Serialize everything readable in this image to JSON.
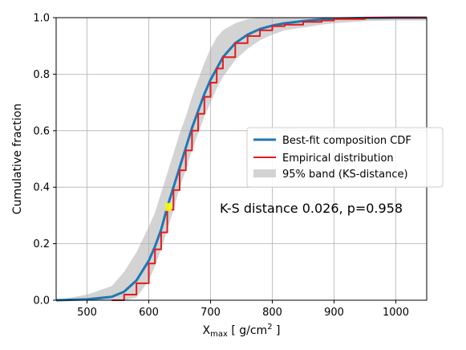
{
  "chart_data": {
    "type": "line",
    "xlabel_main": "X",
    "xlabel_sub": "max",
    "xlabel_unit_open": " [ g/cm",
    "xlabel_unit_sup": "2",
    "xlabel_unit_close": " ]",
    "ylabel": "Cumulative fraction",
    "xlim": [
      450,
      1050
    ],
    "ylim": [
      0.0,
      1.0
    ],
    "xticks": [
      500,
      600,
      700,
      800,
      900,
      1000
    ],
    "yticks": [
      "0.0",
      "0.2",
      "0.4",
      "0.6",
      "0.8",
      "1.0"
    ],
    "grid": true,
    "legend_position": "middle-right",
    "legend": [
      {
        "label": "Best-fit composition CDF",
        "color": "#1f77b4",
        "kind": "line"
      },
      {
        "label": "Empirical distribution",
        "color": "#e41a1c",
        "kind": "line"
      },
      {
        "label": "95% band (KS-distance)",
        "color": "#d3d3d3",
        "kind": "patch"
      }
    ],
    "annotation": "K-S distance 0.026, p=0.958",
    "marker": {
      "x": 632,
      "y": 0.33,
      "color": "#ffff00"
    },
    "series": [
      {
        "name": "Best-fit composition CDF",
        "color": "#1f77b4",
        "x": [
          450,
          500,
          540,
          560,
          580,
          600,
          610,
          620,
          630,
          640,
          650,
          660,
          670,
          680,
          690,
          700,
          710,
          720,
          740,
          760,
          780,
          800,
          820,
          850,
          880,
          900,
          950,
          1000,
          1050
        ],
        "y": [
          0.0,
          0.003,
          0.012,
          0.03,
          0.07,
          0.14,
          0.19,
          0.25,
          0.33,
          0.4,
          0.47,
          0.54,
          0.61,
          0.67,
          0.73,
          0.78,
          0.82,
          0.86,
          0.91,
          0.94,
          0.96,
          0.972,
          0.98,
          0.988,
          0.994,
          0.997,
          0.999,
          1.0,
          1.0
        ]
      },
      {
        "name": "Empirical distribution",
        "color": "#e41a1c",
        "x": [
          540,
          560,
          580,
          600,
          610,
          620,
          630,
          640,
          650,
          660,
          670,
          680,
          690,
          700,
          710,
          720,
          740,
          760,
          780,
          800,
          820,
          850,
          880,
          900,
          950,
          1000,
          1050
        ],
        "y": [
          0.0,
          0.02,
          0.06,
          0.13,
          0.18,
          0.24,
          0.32,
          0.39,
          0.46,
          0.53,
          0.6,
          0.66,
          0.72,
          0.77,
          0.82,
          0.86,
          0.91,
          0.935,
          0.955,
          0.97,
          0.975,
          0.985,
          0.99,
          0.995,
          1.0,
          1.0,
          1.0
        ]
      }
    ],
    "band": {
      "x": [
        450,
        500,
        540,
        560,
        580,
        600,
        610,
        620,
        630,
        640,
        650,
        660,
        670,
        680,
        690,
        700,
        710,
        720,
        740,
        760,
        780,
        800,
        820,
        850,
        880,
        900,
        950,
        1000,
        1050
      ],
      "lower": [
        0.0,
        0.0,
        0.0,
        0.0,
        0.01,
        0.07,
        0.12,
        0.18,
        0.25,
        0.32,
        0.4,
        0.46,
        0.53,
        0.59,
        0.65,
        0.7,
        0.75,
        0.79,
        0.85,
        0.89,
        0.92,
        0.94,
        0.955,
        0.965,
        0.975,
        0.98,
        0.988,
        0.99,
        0.99
      ],
      "upper": [
        0.0,
        0.02,
        0.05,
        0.1,
        0.17,
        0.26,
        0.31,
        0.38,
        0.45,
        0.52,
        0.59,
        0.65,
        0.72,
        0.78,
        0.84,
        0.89,
        0.93,
        0.955,
        0.98,
        0.995,
        1.0,
        1.0,
        1.0,
        1.0,
        1.0,
        1.0,
        1.0,
        1.0,
        1.0
      ]
    }
  }
}
